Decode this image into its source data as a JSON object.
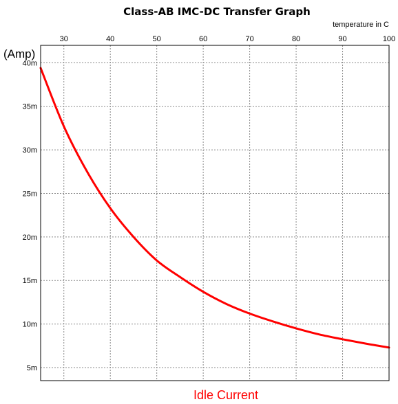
{
  "chart_data": {
    "type": "line",
    "title": "Class-AB IMC-DC Transfer Graph",
    "xlabel": "temperature in C",
    "ylabel": "(Amp)",
    "caption": "Idle Current",
    "x_axis_position": "top",
    "xlim": [
      25,
      100
    ],
    "ylim": [
      3.5,
      42
    ],
    "x_ticks": [
      30,
      40,
      50,
      60,
      70,
      80,
      90,
      100
    ],
    "x_tick_labels": [
      "30",
      "40",
      "50",
      "60",
      "70",
      "80",
      "90",
      "100"
    ],
    "y_ticks": [
      5,
      10,
      15,
      20,
      25,
      30,
      35,
      40
    ],
    "y_tick_labels": [
      "5m",
      "10m",
      "15m",
      "20m",
      "25m",
      "30m",
      "35m",
      "40m"
    ],
    "grid": true,
    "series": [
      {
        "color": "#ff0000",
        "x": [
          25,
          30,
          35,
          40,
          45,
          50,
          55,
          60,
          65,
          70,
          75,
          80,
          85,
          90,
          95,
          100
        ],
        "y": [
          39.4,
          32.7,
          27.5,
          23.3,
          20.0,
          17.3,
          15.4,
          13.7,
          12.3,
          11.2,
          10.3,
          9.5,
          8.8,
          8.25,
          7.75,
          7.3
        ]
      }
    ]
  }
}
